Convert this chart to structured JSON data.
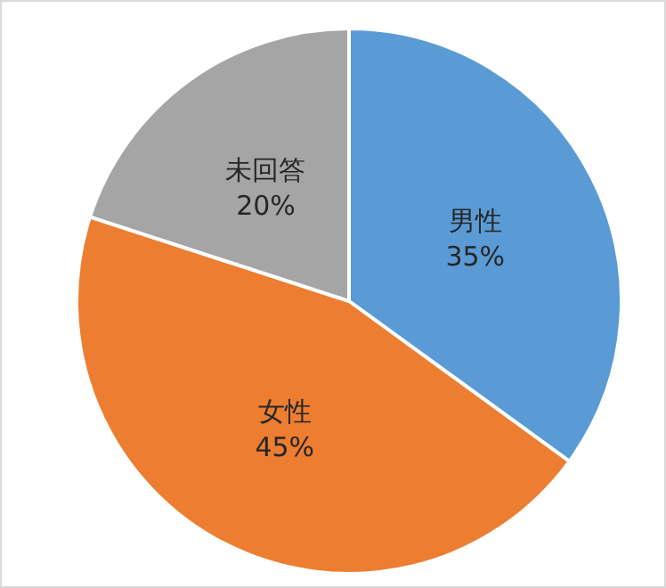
{
  "chart_data": {
    "type": "pie",
    "categories": [
      "男性",
      "女性",
      "未回答"
    ],
    "values": [
      35,
      45,
      20
    ],
    "colors": [
      "#5b9bd5",
      "#ed7d31",
      "#a5a5a5"
    ],
    "value_labels": [
      "35%",
      "45%",
      "20%"
    ],
    "legend": false
  }
}
